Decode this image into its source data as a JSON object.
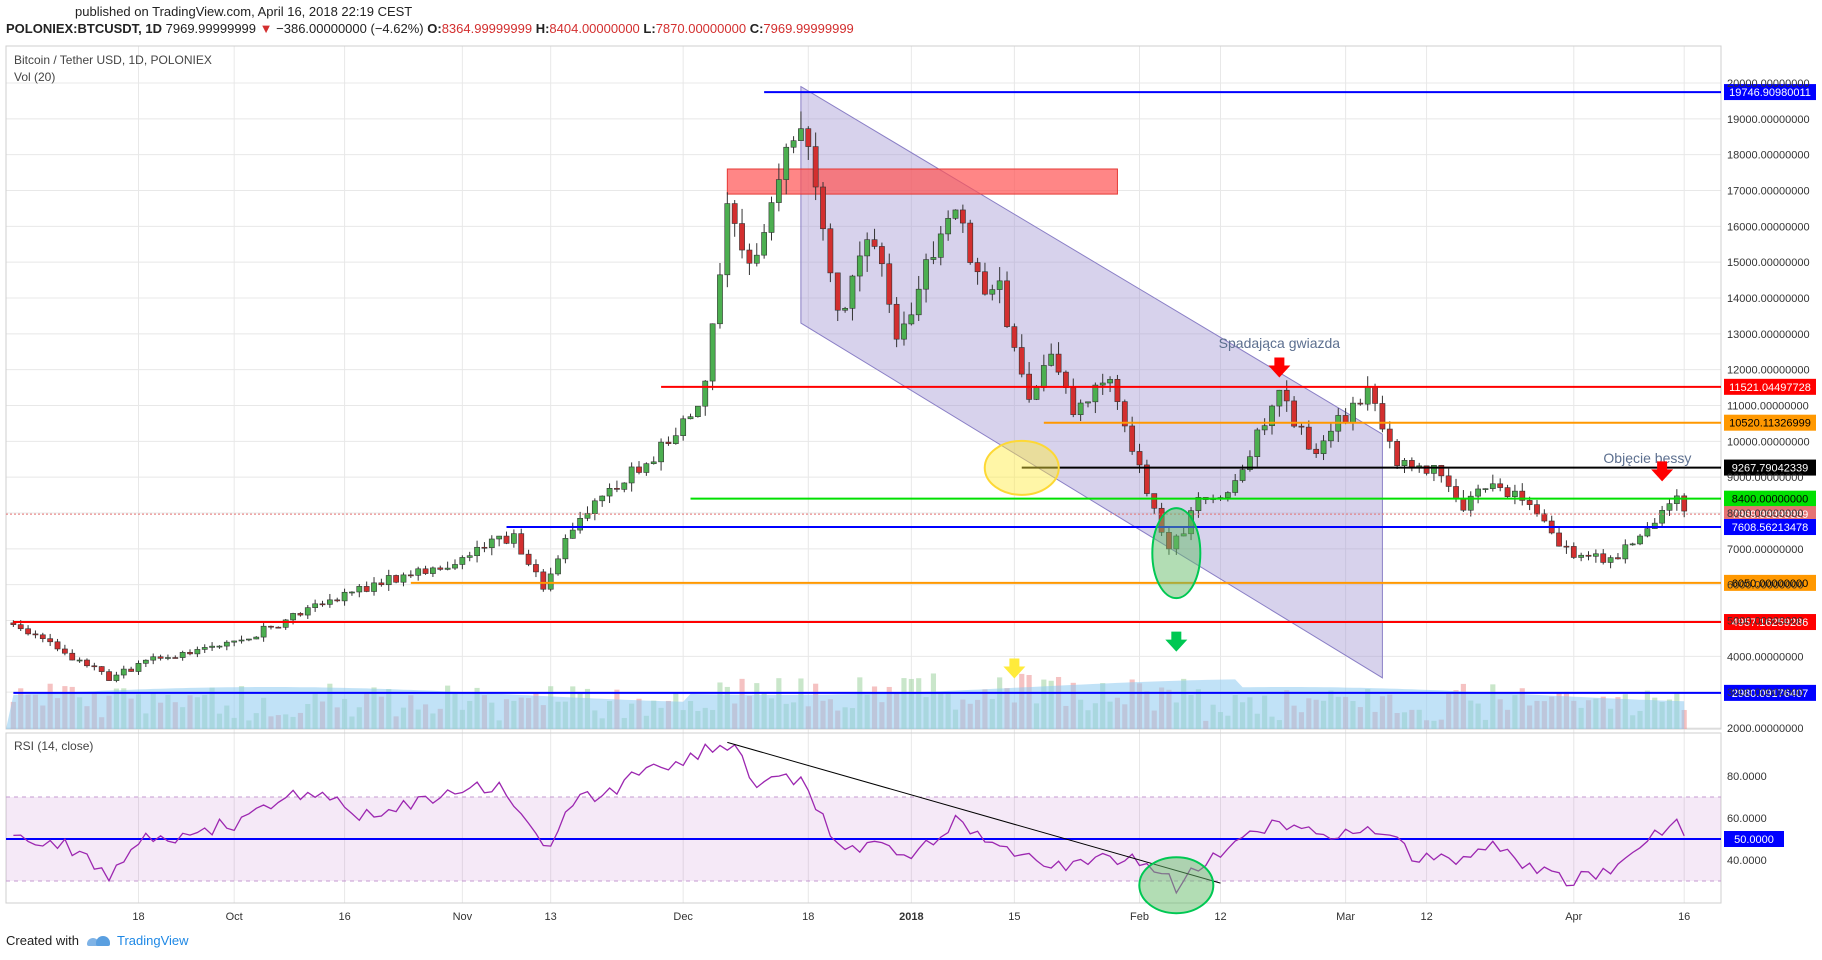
{
  "header": {
    "published": "published on TradingView.com, April 16, 2018 22:19 CEST",
    "symbol": "POLONIEX:BTCUSDT, 1D",
    "last": "7969.99999999",
    "change": "−386.00000000 (−4.62%)",
    "o_label": "O:",
    "o_value": "8364.99999999",
    "h_label": "H:",
    "h_value": "8404.00000000",
    "l_label": "L:",
    "l_value": "7870.00000000",
    "c_label": "C:",
    "c_value": "7969.99999999"
  },
  "legend": {
    "main": "Bitcoin / Tether USD, 1D, POLONIEX",
    "vol": "Vol (20)",
    "rsi": "RSI (14, close)"
  },
  "footer": {
    "created": "Created with",
    "brand": "TradingView"
  },
  "colors": {
    "up": "#4caf50",
    "down": "#d32f2f",
    "channel": "#9c8fd0",
    "resistance": "#ff5252",
    "rsi": "#9c27b0",
    "volume_ma": "#8ecaf0",
    "grid": "#e8e8e8"
  },
  "chart_data": [
    {
      "type": "candlestick",
      "title": "Bitcoin / Tether USD, 1D, POLONIEX",
      "ylim": [
        2000,
        20000
      ],
      "y_ticks": [
        "20000.00000000",
        "19000.00000000",
        "18000.00000000",
        "17000.00000000",
        "16000.00000000",
        "15000.00000000",
        "14000.00000000",
        "13000.00000000",
        "12000.00000000",
        "11000.00000000",
        "10000.00000000",
        "9000.00000000",
        "8000.00000000",
        "7000.00000000",
        "6000.00000000",
        "5000.00000000",
        "4000.00000000",
        "3000.00000000",
        "2000.00000000"
      ],
      "x_ticks": [
        {
          "label": "18",
          "date": "2017-09-18"
        },
        {
          "label": "Oct",
          "date": "2017-10-01"
        },
        {
          "label": "16",
          "date": "2017-10-16"
        },
        {
          "label": "Nov",
          "date": "2017-11-01"
        },
        {
          "label": "13",
          "date": "2017-11-13"
        },
        {
          "label": "Dec",
          "date": "2017-12-01"
        },
        {
          "label": "18",
          "date": "2017-12-18"
        },
        {
          "label": "2018",
          "date": "2018-01-01"
        },
        {
          "label": "15",
          "date": "2018-01-15"
        },
        {
          "label": "Feb",
          "date": "2018-02-01"
        },
        {
          "label": "12",
          "date": "2018-02-12"
        },
        {
          "label": "Mar",
          "date": "2018-03-01"
        },
        {
          "label": "12",
          "date": "2018-03-12"
        },
        {
          "label": "Apr",
          "date": "2018-04-01"
        },
        {
          "label": "16",
          "date": "2018-04-16"
        }
      ],
      "x_range": [
        "2017-09-01",
        "2018-04-16"
      ],
      "closes": [
        {
          "date": "2017-09-01",
          "close": 4900
        },
        {
          "date": "2017-09-14",
          "close": 3400
        },
        {
          "date": "2017-09-20",
          "close": 3900
        },
        {
          "date": "2017-10-01",
          "close": 4350
        },
        {
          "date": "2017-10-12",
          "close": 5400
        },
        {
          "date": "2017-10-20",
          "close": 6000
        },
        {
          "date": "2017-11-01",
          "close": 6700
        },
        {
          "date": "2017-11-08",
          "close": 7400
        },
        {
          "date": "2017-11-12",
          "close": 5900
        },
        {
          "date": "2017-11-16",
          "close": 7700
        },
        {
          "date": "2017-11-28",
          "close": 9800
        },
        {
          "date": "2017-12-04",
          "close": 11500
        },
        {
          "date": "2017-12-07",
          "close": 16400
        },
        {
          "date": "2017-12-10",
          "close": 14800
        },
        {
          "date": "2017-12-17",
          "close": 19200
        },
        {
          "date": "2017-12-22",
          "close": 13500
        },
        {
          "date": "2017-12-27",
          "close": 15700
        },
        {
          "date": "2017-12-30",
          "close": 12800
        },
        {
          "date": "2018-01-07",
          "close": 16800
        },
        {
          "date": "2018-01-10",
          "close": 14500
        },
        {
          "date": "2018-01-13",
          "close": 14200
        },
        {
          "date": "2018-01-17",
          "close": 11300
        },
        {
          "date": "2018-01-20",
          "close": 12700
        },
        {
          "date": "2018-01-23",
          "close": 10900
        },
        {
          "date": "2018-01-28",
          "close": 11600
        },
        {
          "date": "2018-02-01",
          "close": 9200
        },
        {
          "date": "2018-02-05",
          "close": 6900
        },
        {
          "date": "2018-02-09",
          "close": 8300
        },
        {
          "date": "2018-02-13",
          "close": 8600
        },
        {
          "date": "2018-02-20",
          "close": 11200
        },
        {
          "date": "2018-02-25",
          "close": 9700
        },
        {
          "date": "2018-03-04",
          "close": 11500
        },
        {
          "date": "2018-03-08",
          "close": 9400
        },
        {
          "date": "2018-03-13",
          "close": 9200
        },
        {
          "date": "2018-03-17",
          "close": 8200
        },
        {
          "date": "2018-03-21",
          "close": 8900
        },
        {
          "date": "2018-03-28",
          "close": 7900
        },
        {
          "date": "2018-03-31",
          "close": 6900
        },
        {
          "date": "2018-04-06",
          "close": 6650
        },
        {
          "date": "2018-04-12",
          "close": 7900
        },
        {
          "date": "2018-04-15",
          "close": 8350
        },
        {
          "date": "2018-04-16",
          "close": 7970
        }
      ],
      "horizontal_levels": [
        {
          "value": 19746.9098,
          "label": "19746.90980011",
          "color": "#0000ff"
        },
        {
          "value": 11521.0449,
          "label": "11521.04497728",
          "color": "#ff0000"
        },
        {
          "value": 10520.1133,
          "label": "10520.11326999",
          "color": "#ff9800"
        },
        {
          "value": 9267.7904,
          "label": "9267.79042339",
          "color": "#000000"
        },
        {
          "value": 8400,
          "label": "8400.00000000",
          "color": "#00e000"
        },
        {
          "value": 7970,
          "label": "7969.99999999",
          "color": "#e57373"
        },
        {
          "value": 7608.5621,
          "label": "7608.56213478",
          "color": "#0000ff"
        },
        {
          "value": 6050,
          "label": "6050.00000000",
          "color": "#ff9800"
        },
        {
          "value": 4957.1626,
          "label": "4957.16259286",
          "color": "#ff0000"
        },
        {
          "value": 2980.0918,
          "label": "2980.09176407",
          "color": "#0000ff"
        }
      ],
      "annotations": [
        {
          "text": "Spadająca gwiazda",
          "date": "2018-02-20",
          "value": 12600
        },
        {
          "text": "Objęcie bessy",
          "date": "2018-04-11",
          "value": 9400
        }
      ],
      "channel": {
        "upper": [
          [
            "2017-12-17",
            19900
          ],
          [
            "2018-03-06",
            10200
          ]
        ],
        "lower": [
          [
            "2017-12-17",
            13300
          ],
          [
            "2018-03-06",
            3400
          ]
        ]
      },
      "resistance_zone": {
        "from": "2017-12-07",
        "to": "2018-01-29",
        "low": 16900,
        "high": 17600
      }
    },
    {
      "type": "line",
      "title": "RSI (14, close)",
      "ylim": [
        20,
        100
      ],
      "y_ticks": [
        "80.0000",
        "60.0000",
        "40.0000"
      ],
      "levels": [
        {
          "value": 50,
          "label": "50.0000"
        }
      ],
      "series": [
        {
          "points": [
            {
              "date": "2017-09-01",
              "value": 54
            },
            {
              "date": "2017-09-10",
              "value": 44
            },
            {
              "date": "2017-09-14",
              "value": 30
            },
            {
              "date": "2017-09-18",
              "value": 49
            },
            {
              "date": "2017-10-01",
              "value": 57
            },
            {
              "date": "2017-10-10",
              "value": 72
            },
            {
              "date": "2017-10-20",
              "value": 60
            },
            {
              "date": "2017-11-01",
              "value": 74
            },
            {
              "date": "2017-11-07",
              "value": 74
            },
            {
              "date": "2017-11-12",
              "value": 44
            },
            {
              "date": "2017-11-16",
              "value": 66
            },
            {
              "date": "2017-11-28",
              "value": 84
            },
            {
              "date": "2017-12-07",
              "value": 96
            },
            {
              "date": "2017-12-11",
              "value": 76
            },
            {
              "date": "2017-12-17",
              "value": 80
            },
            {
              "date": "2017-12-22",
              "value": 47
            },
            {
              "date": "2018-01-01",
              "value": 43
            },
            {
              "date": "2018-01-07",
              "value": 58
            },
            {
              "date": "2018-01-17",
              "value": 40
            },
            {
              "date": "2018-01-23",
              "value": 38
            },
            {
              "date": "2018-02-01",
              "value": 41
            },
            {
              "date": "2018-02-06",
              "value": 28
            },
            {
              "date": "2018-02-12",
              "value": 44
            },
            {
              "date": "2018-02-20",
              "value": 57
            },
            {
              "date": "2018-02-25",
              "value": 51
            },
            {
              "date": "2018-03-04",
              "value": 58
            },
            {
              "date": "2018-03-10",
              "value": 43
            },
            {
              "date": "2018-03-17",
              "value": 39
            },
            {
              "date": "2018-03-21",
              "value": 46
            },
            {
              "date": "2018-03-31",
              "value": 30
            },
            {
              "date": "2018-04-06",
              "value": 34
            },
            {
              "date": "2018-04-12",
              "value": 53
            },
            {
              "date": "2018-04-15",
              "value": 58
            },
            {
              "date": "2018-04-16",
              "value": 53
            }
          ]
        }
      ],
      "trendline": [
        [
          "2017-12-07",
          96
        ],
        [
          "2018-02-12",
          29
        ]
      ]
    }
  ]
}
